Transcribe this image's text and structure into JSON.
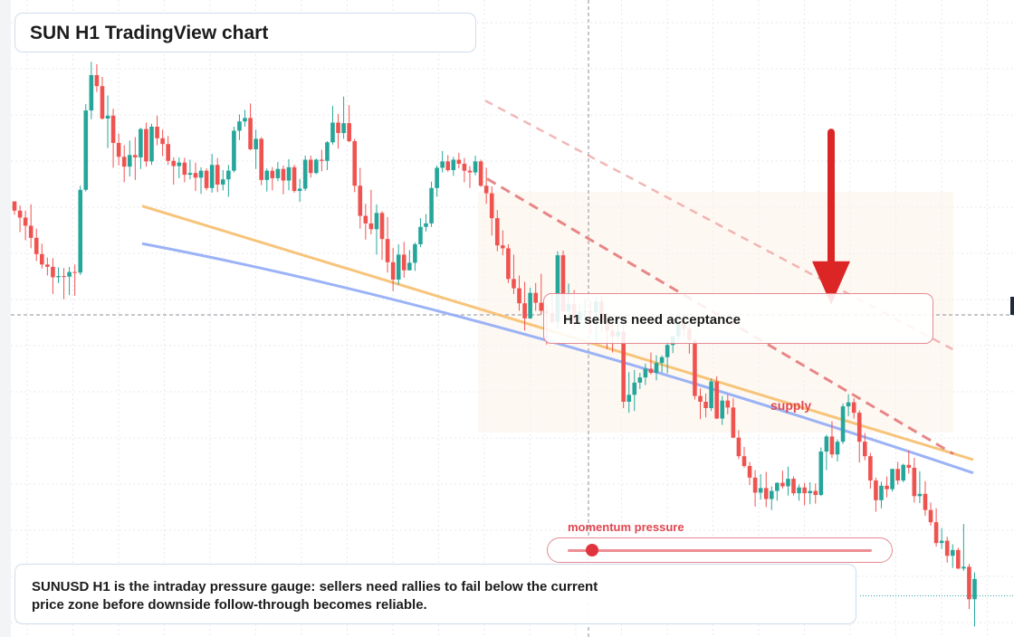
{
  "title": "SUN H1 TradingView chart",
  "annotations": {
    "acceptance_label": "H1 sellers need acceptance",
    "supply_label": "supply",
    "momentum_label": "momentum pressure",
    "momentum_level": 0.08,
    "summary": "SUNUSD H1 is the intraday pressure gauge: sellers need rallies to fail below the current price zone before downside follow-through becomes reliable."
  },
  "colors": {
    "up": "#26a69a",
    "down": "#ef5350",
    "slow_ma": "#f6be6c",
    "fast_ma": "#90aaf5",
    "trendline": "#e57373",
    "arrow": "#dc2626"
  },
  "chart_data": {
    "type": "candlestick",
    "title": "",
    "ylim": [
      0,
      100
    ],
    "grid": true,
    "crosshair_level": 55,
    "current_level": 6.5,
    "candles_ohlc": [
      [
        74.6,
        74.6,
        72.3,
        73.0
      ],
      [
        73.0,
        73.9,
        69.3,
        71.8
      ],
      [
        71.8,
        73.0,
        67.9,
        70.4
      ],
      [
        70.4,
        74.1,
        66.5,
        68.3
      ],
      [
        68.3,
        69.9,
        64.3,
        65.5
      ],
      [
        65.5,
        67.3,
        63.0,
        63.7
      ],
      [
        63.7,
        64.9,
        61.8,
        63.3
      ],
      [
        63.3,
        64.8,
        58.6,
        61.5
      ],
      [
        61.5,
        63.2,
        60.5,
        61.7
      ],
      [
        61.7,
        63.1,
        57.7,
        61.6
      ],
      [
        61.6,
        63.3,
        58.4,
        62.4
      ],
      [
        62.4,
        63.7,
        58.3,
        62.3
      ],
      [
        62.3,
        77.3,
        61.9,
        76.6
      ],
      [
        76.6,
        91.4,
        76.3,
        90.3
      ],
      [
        90.3,
        98.7,
        88.8,
        96.4
      ],
      [
        96.4,
        98.3,
        93.5,
        94.5
      ],
      [
        94.5,
        96.1,
        88.7,
        88.9
      ],
      [
        88.9,
        92.9,
        83.8,
        89.4
      ],
      [
        89.4,
        90.6,
        80.4,
        84.7
      ],
      [
        84.7,
        86.3,
        80.8,
        82.3
      ],
      [
        82.3,
        84.3,
        77.9,
        80.6
      ],
      [
        80.6,
        85.1,
        78.9,
        82.6
      ],
      [
        82.6,
        85.7,
        78.3,
        82.2
      ],
      [
        82.2,
        87.3,
        80.2,
        87.1
      ],
      [
        87.1,
        88.2,
        80.6,
        81.5
      ],
      [
        81.5,
        88.0,
        80.9,
        87.5
      ],
      [
        87.5,
        89.4,
        84.3,
        85.5
      ],
      [
        85.5,
        87.0,
        82.4,
        84.5
      ],
      [
        84.5,
        85.9,
        80.9,
        81.6
      ],
      [
        81.6,
        82.2,
        77.5,
        80.7
      ],
      [
        80.7,
        82.2,
        78.6,
        81.3
      ],
      [
        81.3,
        82.1,
        77.9,
        79.2
      ],
      [
        79.2,
        81.8,
        78.4,
        79.5
      ],
      [
        79.5,
        81.3,
        76.4,
        78.7
      ],
      [
        78.7,
        80.5,
        75.9,
        79.9
      ],
      [
        79.9,
        80.3,
        76.5,
        76.9
      ],
      [
        76.9,
        82.8,
        76.1,
        80.9
      ],
      [
        80.9,
        82.1,
        76.2,
        77.5
      ],
      [
        77.5,
        80.0,
        76.5,
        78.4
      ],
      [
        78.4,
        80.9,
        75.4,
        79.9
      ],
      [
        79.9,
        87.5,
        79.6,
        86.8
      ],
      [
        86.8,
        89.6,
        85.2,
        88.4
      ],
      [
        88.4,
        90.4,
        87.5,
        89.0
      ],
      [
        89.0,
        91.5,
        83.4,
        83.6
      ],
      [
        83.6,
        87.0,
        80.2,
        85.4
      ],
      [
        85.4,
        85.7,
        77.4,
        78.3
      ],
      [
        78.3,
        80.3,
        76.3,
        79.9
      ],
      [
        79.9,
        80.5,
        76.5,
        78.6
      ],
      [
        78.6,
        81.4,
        78.1,
        80.2
      ],
      [
        80.2,
        80.8,
        75.8,
        78.2
      ],
      [
        78.2,
        81.9,
        76.5,
        80.5
      ],
      [
        80.5,
        80.9,
        76.1,
        76.4
      ],
      [
        76.4,
        78.5,
        74.5,
        76.8
      ],
      [
        76.8,
        82.5,
        76.4,
        81.8
      ],
      [
        81.8,
        82.5,
        78.7,
        79.5
      ],
      [
        79.5,
        82.0,
        79.3,
        81.8
      ],
      [
        81.8,
        83.5,
        79.8,
        81.6
      ],
      [
        81.6,
        85.0,
        80.0,
        84.8
      ],
      [
        84.8,
        91.1,
        84.4,
        88.2
      ],
      [
        88.2,
        89.7,
        83.7,
        86.4
      ],
      [
        86.4,
        92.7,
        85.4,
        88.1
      ],
      [
        88.1,
        91.2,
        84.8,
        85.0
      ],
      [
        85.0,
        85.4,
        76.2,
        77.3
      ],
      [
        77.3,
        80.4,
        69.9,
        72.1
      ],
      [
        72.1,
        74.2,
        68.0,
        70.8
      ],
      [
        70.8,
        76.6,
        68.9,
        69.8
      ],
      [
        69.8,
        74.1,
        65.4,
        72.6
      ],
      [
        72.6,
        72.9,
        64.5,
        68.1
      ],
      [
        68.1,
        71.9,
        62.3,
        64.1
      ],
      [
        64.1,
        66.6,
        59.1,
        61.1
      ],
      [
        61.1,
        67.2,
        60.2,
        65.4
      ],
      [
        65.4,
        67.6,
        61.4,
        62.7
      ],
      [
        62.7,
        66.2,
        62.7,
        64.0
      ],
      [
        64.0,
        67.5,
        62.6,
        67.2
      ],
      [
        67.2,
        71.7,
        66.7,
        70.2
      ],
      [
        70.2,
        72.4,
        69.4,
        70.8
      ],
      [
        70.8,
        78.0,
        70.2,
        76.9
      ],
      [
        76.9,
        80.8,
        75.4,
        80.4
      ],
      [
        80.4,
        83.3,
        79.6,
        81.5
      ],
      [
        81.5,
        82.6,
        79.7,
        80.0
      ],
      [
        80.0,
        82.3,
        79.0,
        81.8
      ],
      [
        81.8,
        83.0,
        80.3,
        81.1
      ],
      [
        81.1,
        82.1,
        77.9,
        79.9
      ],
      [
        79.9,
        80.7,
        76.9,
        79.6
      ],
      [
        79.6,
        82.5,
        79.1,
        81.5
      ],
      [
        81.5,
        81.8,
        77.1,
        77.3
      ],
      [
        77.3,
        80.4,
        74.2,
        76.0
      ],
      [
        76.0,
        77.2,
        68.7,
        71.7
      ],
      [
        71.7,
        73.1,
        66.0,
        67.0
      ],
      [
        67.0,
        69.6,
        65.3,
        66.5
      ],
      [
        66.5,
        67.2,
        60.5,
        61.2
      ],
      [
        61.2,
        65.4,
        58.6,
        59.6
      ],
      [
        59.6,
        61.8,
        55.7,
        57.0
      ],
      [
        57.0,
        60.7,
        52.3,
        54.4
      ],
      [
        54.4,
        59.7,
        54.3,
        58.8
      ],
      [
        58.8,
        60.5,
        55.7,
        57.1
      ],
      [
        57.1,
        62.1,
        55.0,
        55.7
      ],
      [
        55.7,
        56.8,
        49.9,
        55.3
      ],
      [
        55.3,
        58.5,
        53.4,
        53.8
      ],
      [
        53.8,
        66.0,
        52.6,
        65.3
      ],
      [
        65.3,
        66.1,
        55.7,
        55.6
      ],
      [
        55.6,
        60.4,
        53.9,
        56.9
      ],
      [
        56.9,
        59.3,
        52.4,
        54.1
      ],
      [
        54.1,
        57.0,
        52.7,
        55.6
      ],
      [
        55.6,
        57.7,
        53.5,
        55.6
      ],
      [
        55.6,
        57.4,
        51.7,
        55.5
      ],
      [
        55.5,
        58.0,
        50.2,
        57.3
      ],
      [
        57.3,
        58.2,
        52.1,
        53.5
      ],
      [
        53.5,
        55.3,
        49.1,
        52.3
      ],
      [
        52.3,
        53.8,
        48.5,
        51.3
      ],
      [
        51.3,
        54.8,
        50.8,
        52.1
      ],
      [
        52.1,
        53.3,
        38.9,
        40.0
      ],
      [
        40.0,
        45.1,
        38.1,
        41.2
      ],
      [
        41.2,
        45.5,
        38.4,
        43.3
      ],
      [
        43.3,
        45.0,
        42.2,
        44.2
      ],
      [
        44.2,
        46.6,
        42.9,
        45.7
      ],
      [
        45.7,
        48.5,
        44.7,
        45.0
      ],
      [
        45.0,
        48.0,
        43.7,
        46.7
      ],
      [
        46.7,
        48.0,
        45.0,
        47.7
      ],
      [
        47.7,
        50.6,
        44.9,
        49.8
      ],
      [
        49.8,
        50.9,
        48.4,
        51.3
      ],
      [
        51.3,
        54.4,
        50.4,
        53.8
      ],
      [
        53.8,
        55.2,
        51.3,
        52.6
      ],
      [
        52.6,
        53.5,
        48.3,
        50.6
      ],
      [
        50.6,
        51.0,
        40.4,
        41.0
      ],
      [
        41.0,
        42.3,
        37.0,
        40.0
      ],
      [
        40.0,
        41.4,
        37.3,
        38.9
      ],
      [
        38.9,
        44.0,
        38.4,
        43.5
      ],
      [
        43.5,
        44.4,
        37.0,
        37.1
      ],
      [
        37.1,
        41.0,
        36.0,
        40.2
      ],
      [
        40.2,
        41.2,
        37.8,
        39.0
      ],
      [
        39.0,
        40.6,
        33.7,
        33.8
      ],
      [
        33.8,
        35.1,
        30.1,
        30.6
      ],
      [
        30.6,
        32.2,
        28.6,
        28.9
      ],
      [
        28.9,
        29.6,
        25.6,
        26.9
      ],
      [
        26.9,
        28.2,
        21.9,
        24.3
      ],
      [
        24.3,
        27.5,
        23.1,
        25.1
      ],
      [
        25.1,
        27.9,
        21.8,
        23.2
      ],
      [
        23.2,
        25.4,
        21.3,
        24.6
      ],
      [
        24.6,
        26.1,
        22.9,
        26.0
      ],
      [
        26.0,
        28.1,
        25.0,
        25.4
      ],
      [
        25.4,
        28.8,
        23.8,
        26.7
      ],
      [
        26.7,
        27.1,
        23.8,
        24.2
      ],
      [
        24.2,
        25.7,
        22.9,
        25.2
      ],
      [
        25.2,
        26.0,
        22.1,
        24.2
      ],
      [
        24.2,
        26.1,
        22.3,
        24.6
      ],
      [
        24.6,
        25.9,
        22.4,
        23.9
      ],
      [
        23.9,
        32.1,
        23.7,
        31.4
      ],
      [
        31.4,
        34.3,
        28.2,
        34.0
      ],
      [
        34.0,
        36.6,
        30.3,
        30.9
      ],
      [
        30.9,
        33.5,
        29.7,
        33.1
      ],
      [
        33.1,
        39.7,
        32.7,
        39.2
      ],
      [
        39.2,
        41.3,
        37.5,
        39.9
      ],
      [
        39.9,
        40.6,
        37.1,
        38.1
      ],
      [
        38.1,
        38.5,
        29.5,
        33.1
      ],
      [
        33.1,
        34.6,
        29.9,
        30.6
      ],
      [
        30.6,
        31.2,
        25.0,
        26.4
      ],
      [
        26.4,
        26.9,
        21.0,
        23.0
      ],
      [
        23.0,
        26.2,
        21.6,
        25.5
      ],
      [
        25.5,
        27.1,
        23.5,
        24.9
      ],
      [
        24.9,
        28.4,
        24.5,
        28.4
      ],
      [
        28.4,
        29.6,
        25.7,
        26.4
      ],
      [
        26.4,
        29.3,
        26.1,
        29.1
      ],
      [
        29.1,
        31.6,
        27.6,
        28.6
      ],
      [
        28.6,
        30.3,
        22.6,
        23.7
      ],
      [
        23.7,
        28.0,
        22.5,
        24.1
      ],
      [
        24.1,
        26.3,
        20.3,
        21.3
      ],
      [
        21.3,
        22.6,
        18.6,
        19.2
      ],
      [
        19.2,
        21.6,
        15.0,
        15.6
      ],
      [
        15.6,
        18.2,
        14.6,
        16.0
      ],
      [
        16.0,
        16.7,
        12.2,
        13.4
      ],
      [
        13.4,
        15.4,
        11.3,
        14.4
      ],
      [
        14.4,
        14.8,
        11.1,
        11.2
      ],
      [
        11.2,
        18.9,
        10.8,
        11.5
      ],
      [
        11.5,
        12.0,
        4.2,
        5.9
      ],
      [
        5.9,
        10.5,
        1.2,
        9.4
      ]
    ],
    "moving_averages": [
      {
        "start": [
          0,
          73.8
        ],
        "end": [
          170,
          30.0
        ]
      },
      {
        "start": [
          0,
          67.3
        ],
        "end": [
          170,
          27.7
        ]
      }
    ],
    "trendlines": [
      {
        "start": [
          86,
          78.5
        ],
        "end": [
          170,
          31.0
        ]
      },
      {
        "start": [
          86,
          92.0
        ],
        "end": [
          170,
          49.0
        ]
      }
    ],
    "arrow_levels": [
      87,
      58
    ]
  }
}
